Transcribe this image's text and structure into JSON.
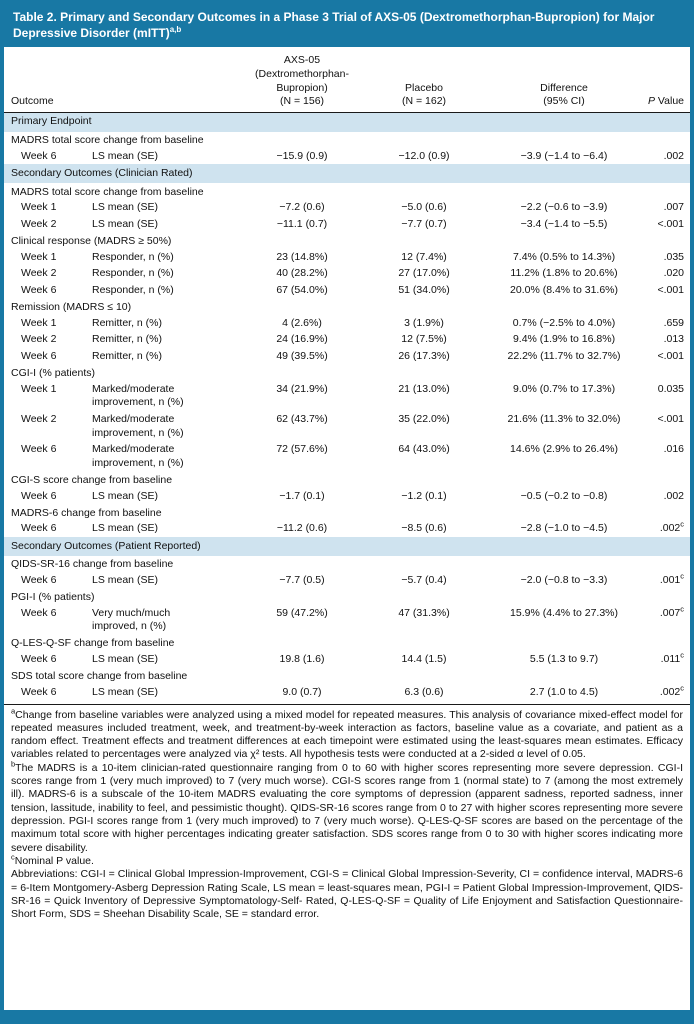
{
  "title": "Table 2. Primary and Secondary Outcomes in a Phase 3 Trial of AXS-05 (Dextromethorphan-Bupropion) for Major Depressive Disorder (mITT)",
  "title_sup": "a,b",
  "colors": {
    "accent_blue": "#1878a4",
    "section_blue": "#cfe3ef"
  },
  "columns": {
    "outcome": "Outcome",
    "axs05": "AXS-05\n(Dextromethorphan-\nBupropion)\n(N = 156)",
    "placebo": "Placebo\n(N = 162)",
    "difference": "Difference\n(95% CI)",
    "p_italic": "P",
    "p_rest": " Value"
  },
  "rows": [
    {
      "type": "section",
      "label": "Primary Endpoint"
    },
    {
      "type": "category",
      "label": "MADRS total score change from baseline"
    },
    {
      "type": "data",
      "week": "Week 6",
      "measure": "LS mean (SE)",
      "axs": "−15.9 (0.9)",
      "placebo": "−12.0 (0.9)",
      "diff": "−3.9 (−1.4 to −6.4)",
      "p": ".002"
    },
    {
      "type": "section",
      "label": "Secondary Outcomes (Clinician Rated)"
    },
    {
      "type": "category",
      "label": "MADRS total score change from baseline"
    },
    {
      "type": "data",
      "week": "Week 1",
      "measure": "LS mean (SE)",
      "axs": "−7.2 (0.6)",
      "placebo": "−5.0 (0.6)",
      "diff": "−2.2 (−0.6 to −3.9)",
      "p": ".007"
    },
    {
      "type": "data",
      "week": "Week 2",
      "measure": "LS mean (SE)",
      "axs": "−11.1 (0.7)",
      "placebo": "−7.7 (0.7)",
      "diff": "−3.4 (−1.4 to −5.5)",
      "p": "<.001"
    },
    {
      "type": "category",
      "label": "Clinical response (MADRS ≥ 50%)"
    },
    {
      "type": "data",
      "week": "Week 1",
      "measure": "Responder, n (%)",
      "axs": "23 (14.8%)",
      "placebo": "12 (7.4%)",
      "diff": "7.4% (0.5% to 14.3%)",
      "p": ".035"
    },
    {
      "type": "data",
      "week": "Week 2",
      "measure": "Responder, n (%)",
      "axs": "40 (28.2%)",
      "placebo": "27 (17.0%)",
      "diff": "11.2% (1.8% to 20.6%)",
      "p": ".020"
    },
    {
      "type": "data",
      "week": "Week 6",
      "measure": "Responder, n (%)",
      "axs": "67 (54.0%)",
      "placebo": "51 (34.0%)",
      "diff": "20.0% (8.4% to 31.6%)",
      "p": "<.001"
    },
    {
      "type": "category",
      "label": "Remission (MADRS ≤ 10)"
    },
    {
      "type": "data",
      "week": "Week 1",
      "measure": "Remitter, n (%)",
      "axs": "4 (2.6%)",
      "placebo": "3 (1.9%)",
      "diff": "0.7% (−2.5% to 4.0%)",
      "p": ".659"
    },
    {
      "type": "data",
      "week": "Week 2",
      "measure": "Remitter, n (%)",
      "axs": "24 (16.9%)",
      "placebo": "12 (7.5%)",
      "diff": "9.4% (1.9% to 16.8%)",
      "p": ".013"
    },
    {
      "type": "data",
      "week": "Week 6",
      "measure": "Remitter, n (%)",
      "axs": "49 (39.5%)",
      "placebo": "26 (17.3%)",
      "diff": "22.2% (11.7% to 32.7%)",
      "p": "<.001"
    },
    {
      "type": "category",
      "label": "CGI-I (% patients)"
    },
    {
      "type": "data",
      "week": "Week 1",
      "measure": "Marked/moderate\nimprovement, n (%)",
      "axs": "34 (21.9%)",
      "placebo": "21 (13.0%)",
      "diff": "9.0% (0.7% to 17.3%)",
      "p": "0.035"
    },
    {
      "type": "data",
      "week": "Week 2",
      "measure": "Marked/moderate\nimprovement, n (%)",
      "axs": "62 (43.7%)",
      "placebo": "35 (22.0%)",
      "diff": "21.6% (11.3% to 32.0%)",
      "p": "<.001"
    },
    {
      "type": "data",
      "week": "Week 6",
      "measure": "Marked/moderate\nimprovement, n (%)",
      "axs": "72 (57.6%)",
      "placebo": "64 (43.0%)",
      "diff": "14.6% (2.9% to 26.4%)",
      "p": ".016"
    },
    {
      "type": "category",
      "label": "CGI-S score change from baseline"
    },
    {
      "type": "data",
      "week": "Week 6",
      "measure": "LS mean (SE)",
      "axs": "−1.7 (0.1)",
      "placebo": "−1.2 (0.1)",
      "diff": "−0.5 (−0.2 to −0.8)",
      "p": ".002"
    },
    {
      "type": "category",
      "label": "MADRS-6 change from baseline"
    },
    {
      "type": "data",
      "week": "Week 6",
      "measure": "LS mean (SE)",
      "axs": "−11.2 (0.6)",
      "placebo": "−8.5 (0.6)",
      "diff": "−2.8 (−1.0 to −4.5)",
      "p": ".002",
      "p_sup": "c"
    },
    {
      "type": "section",
      "label": "Secondary Outcomes (Patient Reported)"
    },
    {
      "type": "category",
      "label": "QIDS-SR-16 change from baseline"
    },
    {
      "type": "data",
      "week": "Week 6",
      "measure": "LS mean (SE)",
      "axs": "−7.7 (0.5)",
      "placebo": "−5.7 (0.4)",
      "diff": "−2.0 (−0.8 to −3.3)",
      "p": ".001",
      "p_sup": "c"
    },
    {
      "type": "category",
      "label": "PGI-I (% patients)"
    },
    {
      "type": "data",
      "week": "Week 6",
      "measure": "Very much/much\nimproved, n (%)",
      "axs": "59 (47.2%)",
      "placebo": "47 (31.3%)",
      "diff": "15.9% (4.4% to 27.3%)",
      "p": ".007",
      "p_sup": "c"
    },
    {
      "type": "category",
      "label": "Q-LES-Q-SF change from baseline"
    },
    {
      "type": "data",
      "week": "Week 6",
      "measure": "LS mean (SE)",
      "axs": "19.8 (1.6)",
      "placebo": "14.4 (1.5)",
      "diff": "5.5 (1.3 to 9.7)",
      "p": ".011",
      "p_sup": "c"
    },
    {
      "type": "category",
      "label": "SDS total score change from baseline"
    },
    {
      "type": "data",
      "week": "Week 6",
      "measure": "LS mean (SE)",
      "axs": "9.0 (0.7)",
      "placebo": "6.3 (0.6)",
      "diff": "2.7 (1.0 to 4.5)",
      "p": ".002",
      "p_sup": "c"
    }
  ],
  "footnotes": [
    {
      "marker": "a",
      "text": "Change from baseline variables were analyzed using a mixed model for repeated measures. This analysis of covariance mixed-effect model for repeated measures included treatment, week, and treatment-by-week interaction as factors, baseline value as a covariate, and patient as a random effect. Treatment effects and treatment differences at each timepoint were estimated using the least-squares mean estimates. Efficacy variables related to percentages were analyzed via χ² tests. All hypothesis tests were conducted at a 2-sided α level of 0.05."
    },
    {
      "marker": "b",
      "text": "The MADRS is a 10-item clinician-rated questionnaire ranging from 0 to 60 with higher scores representing more severe depression. CGI-I scores range from 1 (very much improved) to 7 (very much worse). CGI-S scores range from 1 (normal state) to 7 (among the most extremely ill). MADRS-6 is a subscale of the 10-item MADRS evaluating the core symptoms of depression (apparent sadness, reported sadness, inner tension, lassitude, inability to feel, and pessimistic thought). QIDS-SR-16 scores range from 0 to 27 with higher scores representing more severe depression. PGI-I scores range from 1 (very much improved) to 7 (very much worse). Q-LES-Q-SF scores are based on the percentage of the maximum total score with higher percentages indicating greater satisfaction. SDS scores range from 0 to 30 with higher scores indicating more severe disability."
    },
    {
      "marker": "c",
      "text": "Nominal P value."
    },
    {
      "marker": "",
      "text": "Abbreviations: CGI-I = Clinical Global Impression-Improvement, CGI-S = Clinical Global Impression-Severity, CI = confidence interval, MADRS-6 = 6-Item Montgomery-Asberg Depression Rating Scale, LS mean = least-squares mean, PGI-I = Patient Global Impression-Improvement, QIDS-SR-16 = Quick Inventory of Depressive Symptomatology-Self- Rated, Q-LES-Q-SF = Quality of Life Enjoyment and Satisfaction Questionnaire-Short Form, SDS = Sheehan Disability Scale, SE = standard error."
    }
  ]
}
